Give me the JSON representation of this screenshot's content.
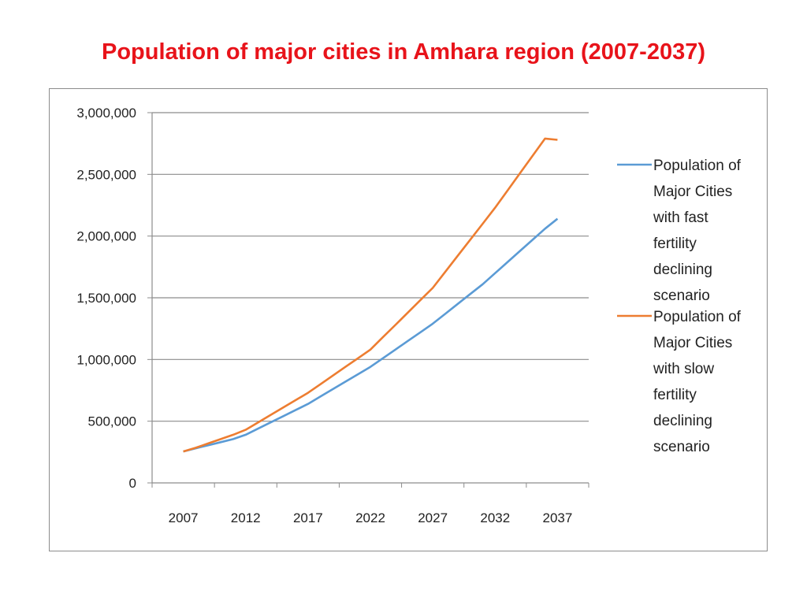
{
  "title": "Population of major cities in Amhara region (2007-2037)",
  "colors": {
    "title": "#e8131a",
    "fast": "#5b9bd5",
    "slow": "#ed7d31",
    "grid": "#8c8c8c"
  },
  "chart_data": {
    "type": "line",
    "categories": [
      "2007",
      "2012",
      "2017",
      "2022",
      "2027",
      "2032",
      "2037"
    ],
    "x": [
      2007,
      2008,
      2009,
      2010,
      2011,
      2012,
      2013,
      2014,
      2015,
      2016,
      2017,
      2018,
      2019,
      2020,
      2021,
      2022,
      2023,
      2024,
      2025,
      2026,
      2027,
      2028,
      2029,
      2030,
      2031,
      2032,
      2033,
      2034,
      2035,
      2036,
      2037
    ],
    "series": [
      {
        "name": "Population of Major Cities with fast fertility declining scenario",
        "legend_lines": [
          "Population of",
          "Major Cities",
          "with fast",
          "fertility",
          "declining",
          "scenario"
        ],
        "color": "#5b9bd5",
        "values": [
          255000,
          280000,
          305000,
          330000,
          355000,
          390000,
          440000,
          490000,
          540000,
          590000,
          640000,
          700000,
          760000,
          820000,
          880000,
          940000,
          1010000,
          1080000,
          1150000,
          1220000,
          1290000,
          1370000,
          1450000,
          1530000,
          1610000,
          1700000,
          1790000,
          1880000,
          1970000,
          2060000,
          2140000
        ]
      },
      {
        "name": "Population of Major Cities with slow fertility declining scenario",
        "legend_lines": [
          "Population of",
          "Major Cities",
          "with slow",
          "fertility",
          "declining",
          "scenario"
        ],
        "color": "#ed7d31",
        "values": [
          255000,
          285000,
          320000,
          355000,
          390000,
          430000,
          490000,
          550000,
          610000,
          670000,
          730000,
          800000,
          870000,
          940000,
          1010000,
          1080000,
          1180000,
          1280000,
          1380000,
          1480000,
          1580000,
          1710000,
          1840000,
          1970000,
          2100000,
          2230000,
          2370000,
          2510000,
          2650000,
          2790000,
          2780000
        ]
      }
    ],
    "y_ticks": [
      "0",
      "500,000",
      "1,000,000",
      "1,500,000",
      "2,000,000",
      "2,500,000",
      "3,000,000"
    ],
    "ylim": [
      0,
      3000000
    ],
    "xlim": [
      2004.5,
      2039.5
    ],
    "grid": true,
    "legend_position": "right"
  }
}
